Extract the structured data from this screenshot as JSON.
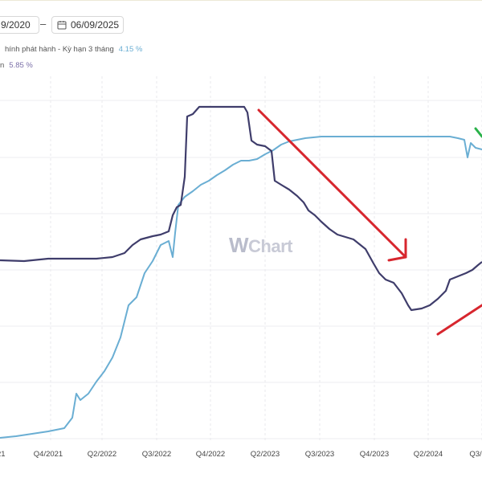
{
  "date_range": {
    "start": "9/2020",
    "separator": "–",
    "end": "06/09/2025"
  },
  "legend": [
    {
      "label": "hính phát hành - Kỳ hạn 3 tháng",
      "value": "4.15 %",
      "color": "#6aaed3"
    },
    {
      "label": "n",
      "value": "5.85 %",
      "color": "#3f3d6b"
    }
  ],
  "watermark": {
    "mark": "W",
    "text": "Chart"
  },
  "icons": {
    "calendar": "calendar-icon"
  },
  "chart_data": {
    "type": "line",
    "x_ticks": [
      "21",
      "Q4/2021",
      "Q2/2022",
      "Q3/2022",
      "Q4/2022",
      "Q2/2023",
      "Q3/2023",
      "Q4/2023",
      "Q2/2024",
      "Q3/"
    ],
    "grid": true,
    "series": [
      {
        "color": "#6aaed3",
        "points": [
          [
            0,
            545
          ],
          [
            20,
            543
          ],
          [
            40,
            540
          ],
          [
            60,
            537
          ],
          [
            80,
            533
          ],
          [
            90,
            520
          ],
          [
            95,
            490
          ],
          [
            100,
            498
          ],
          [
            110,
            490
          ],
          [
            120,
            475
          ],
          [
            130,
            462
          ],
          [
            140,
            445
          ],
          [
            150,
            420
          ],
          [
            160,
            380
          ],
          [
            170,
            370
          ],
          [
            180,
            340
          ],
          [
            190,
            325
          ],
          [
            200,
            305
          ],
          [
            210,
            300
          ],
          [
            215,
            320
          ],
          [
            218,
            290
          ],
          [
            222,
            255
          ],
          [
            230,
            245
          ],
          [
            240,
            238
          ],
          [
            250,
            230
          ],
          [
            260,
            225
          ],
          [
            270,
            218
          ],
          [
            280,
            212
          ],
          [
            290,
            205
          ],
          [
            300,
            200
          ],
          [
            310,
            200
          ],
          [
            320,
            198
          ],
          [
            330,
            192
          ],
          [
            340,
            187
          ],
          [
            350,
            180
          ],
          [
            360,
            176
          ],
          [
            370,
            174
          ],
          [
            380,
            172
          ],
          [
            390,
            171
          ],
          [
            400,
            170
          ],
          [
            420,
            170
          ],
          [
            440,
            170
          ],
          [
            460,
            170
          ],
          [
            480,
            170
          ],
          [
            500,
            170
          ],
          [
            520,
            170
          ],
          [
            540,
            170
          ],
          [
            560,
            170
          ],
          [
            570,
            172
          ],
          [
            578,
            174
          ],
          [
            582,
            196
          ],
          [
            586,
            178
          ],
          [
            592,
            184
          ],
          [
            600,
            186
          ]
        ]
      },
      {
        "color": "#3f3d6b",
        "points": [
          [
            0,
            324
          ],
          [
            30,
            325
          ],
          [
            60,
            322
          ],
          [
            90,
            322
          ],
          [
            120,
            322
          ],
          [
            140,
            320
          ],
          [
            155,
            315
          ],
          [
            165,
            305
          ],
          [
            175,
            298
          ],
          [
            190,
            294
          ],
          [
            200,
            292
          ],
          [
            210,
            288
          ],
          [
            215,
            268
          ],
          [
            220,
            258
          ],
          [
            225,
            255
          ],
          [
            230,
            220
          ],
          [
            233,
            145
          ],
          [
            240,
            142
          ],
          [
            248,
            133
          ],
          [
            280,
            133
          ],
          [
            304,
            133
          ],
          [
            308,
            140
          ],
          [
            313,
            175
          ],
          [
            320,
            180
          ],
          [
            330,
            182
          ],
          [
            338,
            188
          ],
          [
            342,
            225
          ],
          [
            350,
            230
          ],
          [
            360,
            236
          ],
          [
            370,
            244
          ],
          [
            378,
            252
          ],
          [
            384,
            262
          ],
          [
            392,
            268
          ],
          [
            400,
            276
          ],
          [
            410,
            285
          ],
          [
            420,
            292
          ],
          [
            440,
            298
          ],
          [
            455,
            310
          ],
          [
            465,
            328
          ],
          [
            472,
            340
          ],
          [
            480,
            348
          ],
          [
            490,
            352
          ],
          [
            500,
            365
          ],
          [
            508,
            380
          ],
          [
            512,
            386
          ],
          [
            525,
            384
          ],
          [
            535,
            380
          ],
          [
            545,
            372
          ],
          [
            555,
            362
          ],
          [
            560,
            348
          ],
          [
            570,
            344
          ],
          [
            580,
            340
          ],
          [
            588,
            336
          ],
          [
            595,
            330
          ],
          [
            600,
            326
          ]
        ]
      }
    ]
  },
  "annotations": [
    {
      "color": "#d7262e",
      "points": [
        [
          322,
          137
        ],
        [
          505,
          320
        ]
      ]
    },
    {
      "color": "#d7262e",
      "points": [
        [
          505,
          320
        ],
        [
          505,
          298
        ]
      ]
    },
    {
      "color": "#d7262e",
      "points": [
        [
          505,
          320
        ],
        [
          484,
          324
        ]
      ]
    },
    {
      "color": "#d7262e",
      "points": [
        [
          545,
          416
        ],
        [
          600,
          380
        ]
      ]
    },
    {
      "color": "#2ab24a",
      "points": [
        [
          592,
          160
        ],
        [
          600,
          170
        ]
      ]
    }
  ]
}
